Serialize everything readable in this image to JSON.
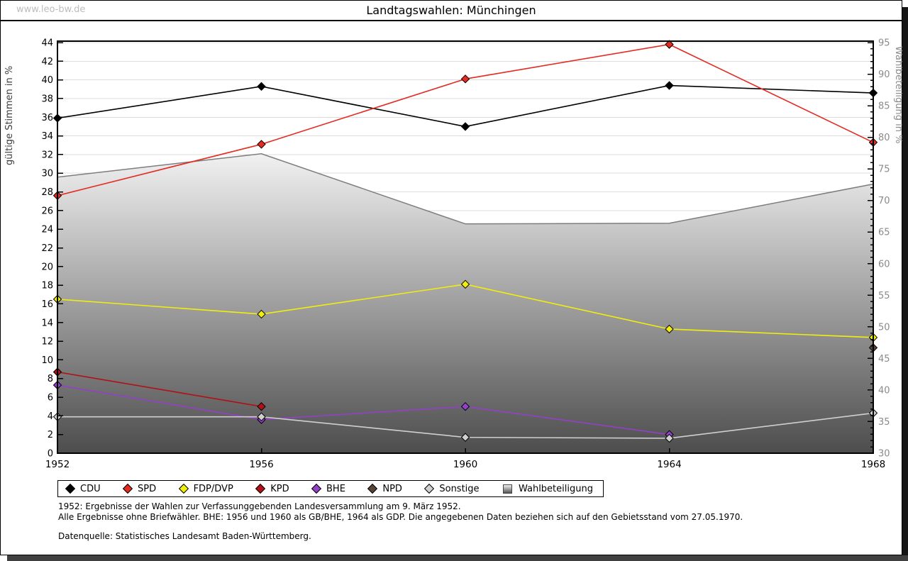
{
  "page": {
    "watermark": "www.leo-bw.de",
    "title": "Landtagswahlen: Münchingen",
    "footnotes": [
      "1952: Ergebnisse der Wahlen zur Verfassunggebenden Landesversammlung am 9. März 1952.",
      "Alle Ergebnisse ohne Briefwähler. BHE: 1956 und 1960 als GB/BHE, 1964 als GDP. Die angegebenen Daten beziehen sich auf den Gebietsstand vom 27.05.1970."
    ],
    "source": "Datenquelle: Statistisches Landesamt Baden-Württemberg."
  },
  "chart_data": {
    "type": "line",
    "title": "Landtagswahlen: Münchingen",
    "categories": [
      "1952",
      "1956",
      "1960",
      "1964",
      "1968"
    ],
    "y_left": {
      "label": "gültige Stimmen in %",
      "min": 0,
      "max": 44,
      "tick_step": 2
    },
    "y_right": {
      "label": "Wahlbeteiligung in %",
      "min": 30,
      "max": 95,
      "tick_step": 5,
      "minor_tick_step": 1
    },
    "grid": true,
    "legend_position": "bottom",
    "colors": {
      "grid": "#dcdcdc",
      "frame": "#000000",
      "right_axis_text": "#8a8a8a",
      "area_line": "#7d7d7d"
    },
    "series": [
      {
        "name": "CDU",
        "type": "line",
        "axis": "left",
        "color": "#000000",
        "values": [
          35.9,
          39.3,
          35.0,
          39.4,
          38.6
        ]
      },
      {
        "name": "SPD",
        "type": "line",
        "axis": "left",
        "color": "#e32b22",
        "values": [
          27.6,
          33.1,
          40.1,
          43.8,
          33.3
        ]
      },
      {
        "name": "FDP/DVP",
        "type": "line",
        "axis": "left",
        "color": "#f2ee0c",
        "values": [
          16.5,
          14.9,
          18.1,
          13.3,
          12.4
        ]
      },
      {
        "name": "KPD",
        "type": "line",
        "axis": "left",
        "color": "#b01116",
        "values": [
          8.7,
          5.0,
          null,
          null,
          null
        ]
      },
      {
        "name": "BHE",
        "type": "line",
        "axis": "left",
        "color": "#9440c8",
        "values": [
          7.3,
          3.6,
          5.0,
          2.0,
          null
        ]
      },
      {
        "name": "NPD",
        "type": "line",
        "axis": "left",
        "color": "#5a4438",
        "values": [
          null,
          null,
          null,
          null,
          11.3
        ]
      },
      {
        "name": "Sonstige",
        "type": "line",
        "axis": "left",
        "color": "#cfcfcf",
        "values": [
          3.9,
          3.9,
          1.7,
          1.6,
          4.3
        ]
      },
      {
        "name": "Wahlbeteiligung",
        "type": "area",
        "axis": "right",
        "color": "gray-gradient",
        "values": [
          73.7,
          77.4,
          66.3,
          66.4,
          72.6
        ]
      }
    ]
  }
}
